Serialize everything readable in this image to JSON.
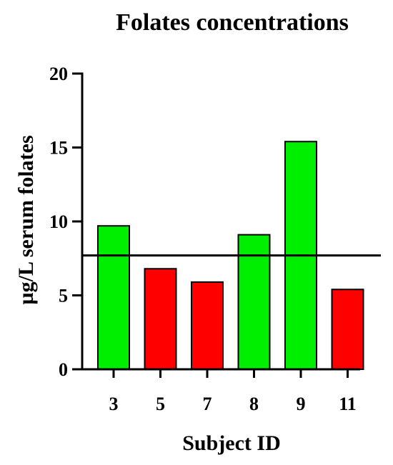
{
  "chart_data": {
    "type": "bar",
    "title": "Folates concentrations",
    "xlabel": "Subject ID",
    "ylabel": "µg/L serum folates",
    "categories": [
      "3",
      "5",
      "7",
      "8",
      "9",
      "11"
    ],
    "values": [
      9.7,
      6.8,
      5.9,
      9.1,
      15.4,
      5.4
    ],
    "bar_colors": [
      "#00ee00",
      "#ff0000",
      "#ff0000",
      "#00ee00",
      "#00ee00",
      "#ff0000"
    ],
    "ylim": [
      0,
      20
    ],
    "yticks": [
      0,
      5,
      10,
      15,
      20
    ],
    "reference_line": 7.7,
    "grid": false,
    "legend": "none"
  },
  "colors": {
    "above_reference": "#00ee00",
    "below_reference": "#ff0000",
    "axis": "#000000"
  }
}
